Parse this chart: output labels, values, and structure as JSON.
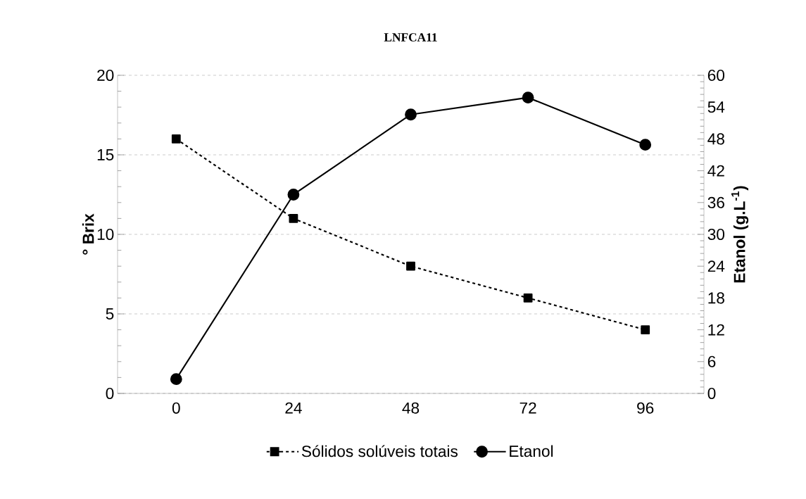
{
  "chart_data": {
    "type": "line",
    "title": "LNFCA11",
    "xlabel": null,
    "ylabel": "° Brix",
    "y2label": "Etanol (g.L$^{-1}$)",
    "categories": [
      "0",
      "24",
      "48",
      "72",
      "96"
    ],
    "series": [
      {
        "name": "Sólidos solúveis totais",
        "color": "#000000",
        "values": [
          16,
          11,
          8,
          6,
          4
        ],
        "marker": "square",
        "line_style": "dashed"
      },
      {
        "name": "Etanol",
        "color": "#000000",
        "values": [
          2.7,
          37.5,
          52.6,
          55.8,
          46.9
        ],
        "marker": "circle",
        "line_style": "solid",
        "axis": "y2"
      }
    ],
    "ylim": [
      0,
      20
    ],
    "yticks": [
      0,
      5,
      10,
      15,
      20
    ],
    "y2lim": [
      0,
      60
    ],
    "y2ticks": [
      0,
      6,
      12,
      18,
      24,
      30,
      36,
      42,
      48,
      54,
      60
    ],
    "grid": "y",
    "legend": "bottom"
  }
}
